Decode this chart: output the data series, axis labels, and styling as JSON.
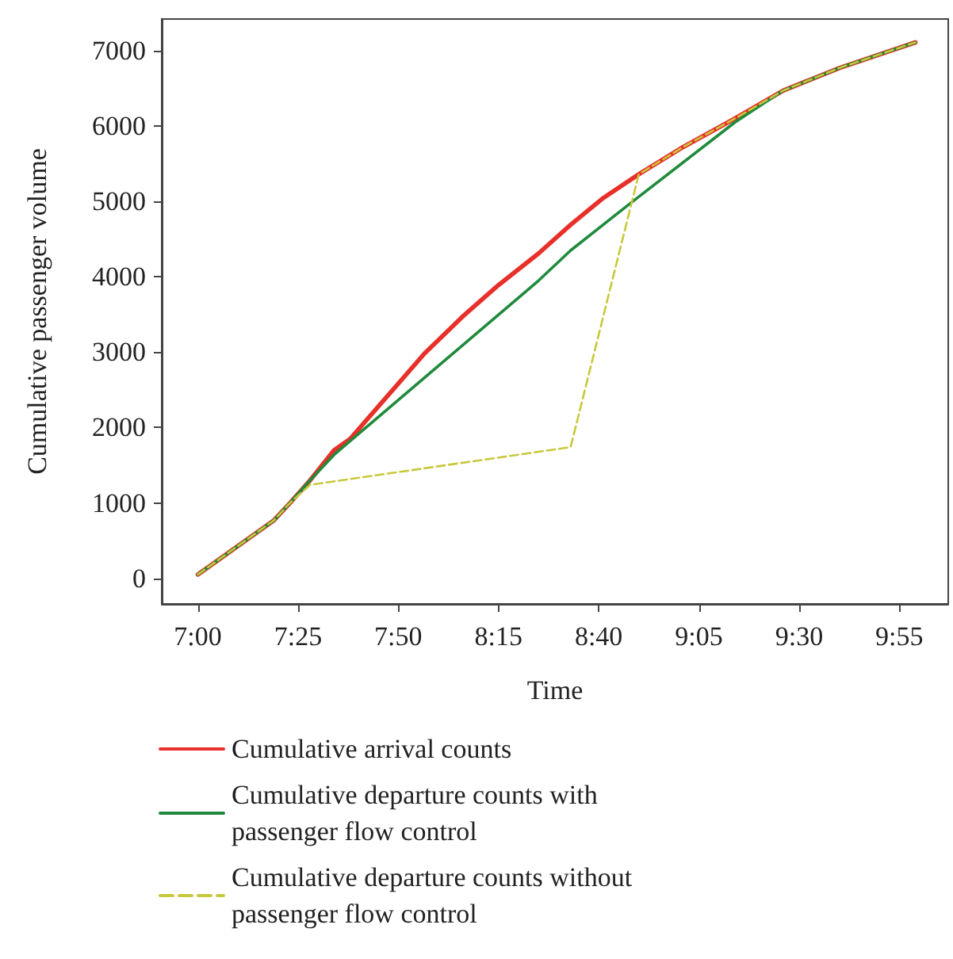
{
  "chart_data": {
    "type": "line",
    "xlabel": "Time",
    "ylabel": "Cumulative passenger volume",
    "xlim": [
      6.85,
      10.12
    ],
    "xticks": [
      {
        "value": 7,
        "label": "7:00"
      },
      {
        "value": 7.4167,
        "label": "7:25"
      },
      {
        "value": 7.8333,
        "label": "7:50"
      },
      {
        "value": 8.25,
        "label": "8:15"
      },
      {
        "value": 8.6667,
        "label": "8:40"
      },
      {
        "value": 9.0833,
        "label": "9:05"
      },
      {
        "value": 9.5,
        "label": "9:30"
      },
      {
        "value": 9.9167,
        "label": "9:55"
      }
    ],
    "ylim": [
      -340,
      7420
    ],
    "yticks": [
      0,
      1000,
      2000,
      3000,
      4000,
      5000,
      6000,
      7000
    ],
    "grid": false,
    "legend": "bottom",
    "marker": "none",
    "series": [
      {
        "name": "Cumulative arrival counts",
        "color": "#e8302a",
        "line_style": "solid",
        "x": [
          7,
          7.3167,
          7.3833,
          7.4667,
          7.5667,
          7.6333,
          7.9417,
          8.1,
          8.25,
          8.4167,
          8.55,
          8.6833,
          8.8333,
          9.0167,
          9.2333,
          9.4333,
          9.6667,
          9.9833
        ],
        "values": [
          50,
          770,
          1000,
          1300,
          1700,
          1850,
          2980,
          3470,
          3890,
          4310,
          4690,
          5040,
          5360,
          5720,
          6100,
          6470,
          6770,
          7110
        ]
      },
      {
        "name": "Cumulative departure counts with passenger flow control",
        "color": "#1f8a3c",
        "line_style": "solid",
        "x": [
          7,
          7.3167,
          7.3833,
          7.4667,
          7.5667,
          8.4167,
          8.55,
          8.8,
          9.2333,
          9.4333,
          9.6667,
          9.9833
        ],
        "values": [
          50,
          770,
          1000,
          1300,
          1640,
          3950,
          4350,
          4980,
          6050,
          6470,
          6770,
          7110
        ]
      },
      {
        "name": "Cumulative departure counts without passenger flow control",
        "color": "#c8c83c",
        "line_style": "dashed",
        "x": [
          7,
          7.3167,
          7.3833,
          7.4667,
          8.55,
          8.8333,
          9.0167,
          9.2333,
          9.4333,
          9.6667,
          9.9833
        ],
        "values": [
          50,
          770,
          1000,
          1240,
          1740,
          5360,
          5720,
          6100,
          6470,
          6770,
          7110
        ]
      }
    ]
  }
}
